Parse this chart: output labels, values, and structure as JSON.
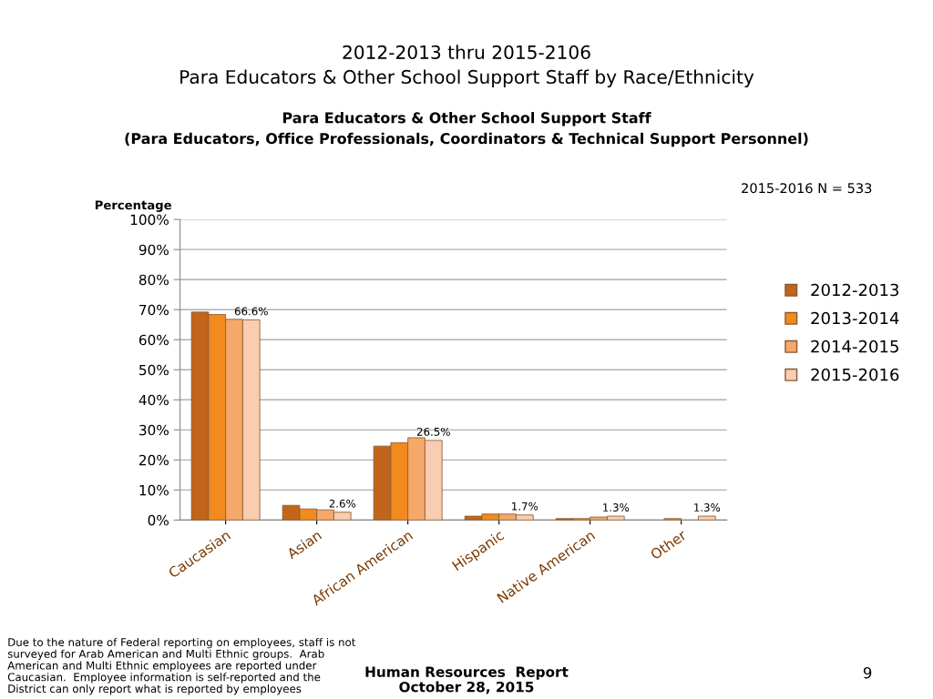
{
  "chart_data": {
    "type": "bar",
    "title": "2012-2013 thru 2015-2106\nPara Educators & Other School Support Staff by Race/Ethnicity",
    "subtitle": "Para Educators & Other School Support Staff\n(Para Educators, Office Professionals, Coordinators & Technical Support Personnel)",
    "ylabel": "Percentage",
    "categories": [
      "Caucasian",
      "Asian",
      "African American",
      "Hispanic",
      "Native American",
      "Other"
    ],
    "series": [
      {
        "name": "2012-2013",
        "color": "#c0651a",
        "values": [
          69.2,
          4.9,
          24.6,
          1.3,
          0.5,
          null
        ]
      },
      {
        "name": "2013-2014",
        "color": "#f28a1e",
        "values": [
          68.4,
          3.7,
          25.7,
          2.0,
          0.5,
          0.5
        ]
      },
      {
        "name": "2014-2015",
        "color": "#f5a86a",
        "values": [
          66.8,
          3.4,
          27.4,
          2.0,
          1.0,
          null
        ]
      },
      {
        "name": "2015-2016",
        "color": "#f8cdb0",
        "values": [
          66.6,
          2.6,
          26.5,
          1.7,
          1.3,
          1.3
        ],
        "value_labels": [
          "66.6%",
          "2.6%",
          "26.5%",
          "1.7%",
          "1.3%",
          "1.3%"
        ]
      }
    ],
    "ylim": [
      0,
      100
    ],
    "yticks": [
      {
        "value": 0,
        "label": "0%"
      },
      {
        "value": 10,
        "label": "10%"
      },
      {
        "value": 20,
        "label": "20%"
      },
      {
        "value": 30,
        "label": "30%"
      },
      {
        "value": 40,
        "label": "40%"
      },
      {
        "value": 50,
        "label": "50%"
      },
      {
        "value": 60,
        "label": "60%"
      },
      {
        "value": 70,
        "label": "70%"
      },
      {
        "value": 80,
        "label": "80%"
      },
      {
        "value": 90,
        "label": "90%"
      },
      {
        "value": 100,
        "label": "100%"
      }
    ],
    "grid": "y",
    "legend": "right",
    "annotations": [
      "2015-2016 N = 533",
      "Due to the nature of Federal reporting on employees, staff is not\nsurveyed for Arab American and Multi Ethnic groups.  Arab\nAmerican and Multi Ethnic employees are reported under\nCaucasian.  Employee information is self-reported and the\nDistrict can only report what is reported by employees",
      "Human Resources  Report\nOctober 28, 2015",
      "9"
    ]
  }
}
